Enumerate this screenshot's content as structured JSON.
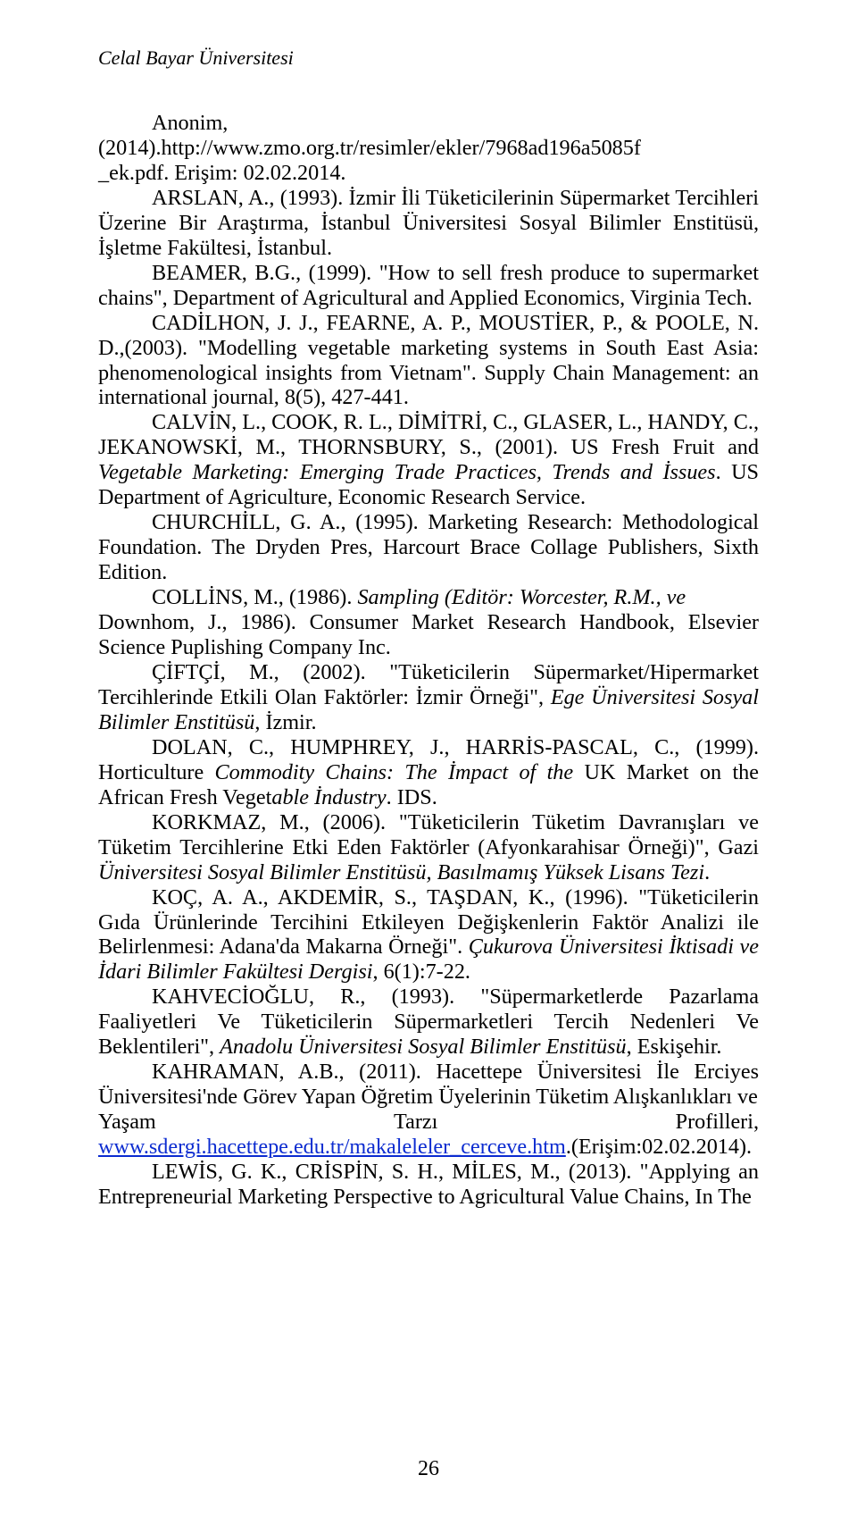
{
  "runningHead": "Celal Bayar Üniversitesi",
  "pageNumber": "26",
  "refs": {
    "anonim1": "Anonim,(2014).http://www.zmo.org.tr/resimler/ekler/7968ad196a5085f",
    "anonim2": "_ek.pdf. Erişim: 02.02.2014.",
    "arslan": "ARSLAN, A., (1993). İzmir İli Tüketicilerinin Süpermarket Tercihleri Üzerine Bir Araştırma, İstanbul Üniversitesi Sosyal Bilimler Enstitüsü, İşletme Fakültesi, İstanbul.",
    "beamer": "BEAMER, B.G., (1999). \"How to sell fresh produce to supermarket chains\", Department of Agricultural and Applied Economics, Virginia Tech.",
    "cadilhon": "CADİLHON, J. J., FEARNE, A. P., MOUSTİER, P., & POOLE, N. D.,(2003). \"Modelling vegetable marketing systems in South East Asia: phenomenological insights from Vietnam\". Supply Chain Management: an international journal, 8(5), 427-441.",
    "calvin_1": "CALVİN, L., COOK, R. L., DİMİTRİ, C., GLASER, L., HANDY, C., JEKANOWSKİ, M., THORNSBURY, S., (2001). US Fresh Fruit and ",
    "calvin_2": "Vegetable Marketing: Emerging Trade Practices, Trends and İssues",
    "calvin_3": ". US Department of Agriculture, Economic Research Service.",
    "churchill": "CHURCHİLL, G. A., (1995). Marketing Research: Methodological Foundation. The Dryden Pres, Harcourt Brace Collage Publishers, Sixth Edition.",
    "collins_1": "COLLİNS, M., (1986). ",
    "collins_2": "Sampling (Editör: Worcester, R.M., ve ",
    "collins_3": "Downhom, J., 1986). Consumer Market Research Handbook, Elsevier Science Puplishing Company Inc.",
    "ciftci_1": "ÇİFTÇİ, M., (2002). \"Tüketicilerin Süpermarket/Hipermarket Tercihlerinde Etkili Olan Faktörler: İzmir Örneği\", ",
    "ciftci_2": "Ege Üniversitesi Sosyal Bilimler Enstitüsü",
    "ciftci_3": ", İzmir.",
    "dolan_1": "DOLAN, C., HUMPHREY, J., HARRİS-PASCAL, C., (1999). Horticulture ",
    "dolan_2": "Commodity Chains: The İmpact of the ",
    "dolan_3": "UK Market on the African Fresh Veget",
    "dolan_4": "able İndustry",
    "dolan_5": ". IDS.",
    "korkmaz_1": "KORKMAZ, M., (2006). \"Tüketicilerin Tüketim Davranışları ve Tüketim Tercihlerine Etki Eden Faktörler (Afyonkarahisar Örneği)\", Gazi ",
    "korkmaz_2": "Üniversitesi Sosyal Bilimler Enstitüsü, Basılmamış Yüksek Lisans Tezi",
    "korkmaz_3": ".",
    "koc_1": "KOÇ, A. A., AKDEMİR, S., TAŞDAN, K., (1996). \"Tüketicilerin Gıda Ürünlerinde Tercihini Etkileyen Değişkenlerin Faktör Analizi ile Belirlenmesi: Adana'da Makarna Örneği\". ",
    "koc_2": "Çukurova Üniversitesi İktisadi ve İdari Bilimler Fakültesi Dergisi",
    "koc_3": ", 6(1):7-22.",
    "kahvecioglu_1": "KAHVECİOĞLU, R., (1993). \"Süpermarketlerde Pazarlama Faaliyetleri Ve Tüketicilerin Süpermarketleri Tercih Nedenleri Ve Beklentileri\", ",
    "kahvecioglu_2": "Anadolu Üniversitesi Sosyal Bilimler Enstitüsü",
    "kahvecioglu_3": ", Eskişehir.",
    "kahraman_pre": "KAHRAMAN, A.B., (2011). Hacettepe Üniversitesi İle Erciyes Üniversitesi'nde Görev Yapan Öğretim Üyelerinin Tüketim Alışkanlıkları ve ",
    "kahraman_yasam": "Yaşam",
    "kahraman_tarzi": "Tarzı",
    "kahraman_profilleri": "Profilleri,",
    "kahraman_link": "www.sdergi.hacettepe.edu.tr/makaleleler_cerceve.htm",
    "kahraman_tail": ".(Erişim:02.02.2014).",
    "lewis": "LEWİS, G. K., CRİSPİN, S. H., MİLES, M., (2013). \"Applying an Entrepreneurial Marketing Perspective to Agricultural Value Chains, In The"
  }
}
